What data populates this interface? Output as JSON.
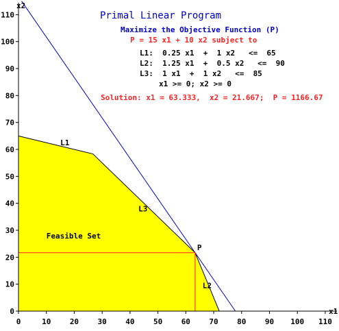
{
  "chart_data": {
    "type": "area",
    "title": "Primal Linear Program",
    "objective_heading": "Maximize the Objective Function (P)",
    "objective_line": "P =  15 x1  +  10 x2   subject to",
    "constraints": [
      "L1:  0.25 x1  +  1 x2   <=  65",
      "L2:  1.25 x1  +  0.5 x2   <=  90",
      "L3:  1 x1  +  1 x2   <=  85",
      "x1 >= 0; x2 >= 0"
    ],
    "solution": "Solution: x1 = 63.333,  x2 = 21.667;  P = 1166.67",
    "xlabel": "x1",
    "ylabel": "x2",
    "xlim": [
      0,
      115
    ],
    "ylim": [
      0,
      115
    ],
    "x_ticks": [
      0,
      10,
      20,
      30,
      40,
      50,
      60,
      70,
      80,
      90,
      100,
      110
    ],
    "y_ticks": [
      0,
      10,
      20,
      30,
      40,
      50,
      60,
      70,
      80,
      90,
      100,
      110
    ],
    "feasible_label": "Feasible Set",
    "feasible_vertices": [
      [
        0,
        0
      ],
      [
        0,
        65
      ],
      [
        26.667,
        58.333
      ],
      [
        63.333,
        21.667
      ],
      [
        72,
        0
      ]
    ],
    "lines": [
      {
        "name": "L1",
        "a": 0.25,
        "b": 1,
        "c": 65,
        "label_at": [
          15,
          61.5
        ]
      },
      {
        "name": "L2",
        "a": 1.25,
        "b": 0.5,
        "c": 90,
        "label_at": [
          66,
          8.5
        ]
      },
      {
        "name": "L3",
        "a": 1,
        "b": 1,
        "c": 85,
        "label_at": [
          43,
          37
        ]
      }
    ],
    "objective_line_value": 1166.67,
    "optimum": {
      "label": "P",
      "x": 63.333,
      "y": 21.667
    },
    "colors": {
      "feasible": "#ffff00",
      "boundary": "#000000",
      "objective": "#0000cc",
      "guide": "#ff2222",
      "title": "#0000cc",
      "highlight": "#ff2222"
    }
  }
}
